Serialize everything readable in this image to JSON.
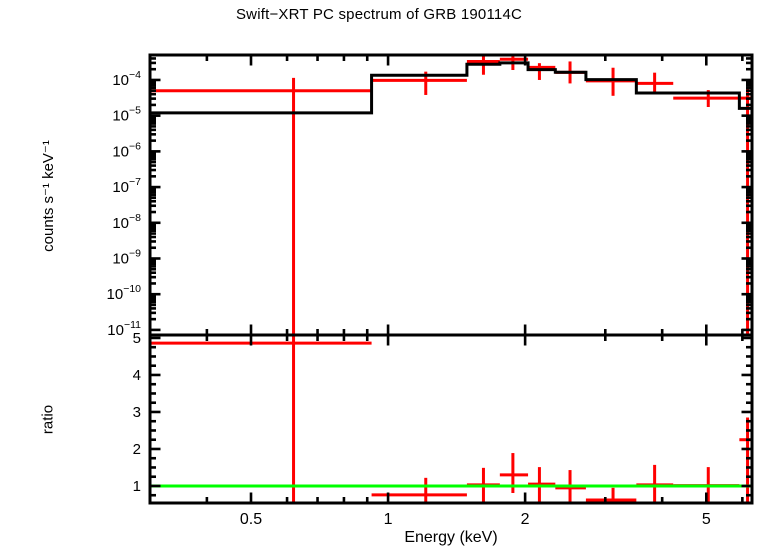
{
  "figure": {
    "title": "Swift−XRT PC spectrum of GRB 190114C",
    "xlabel": "Energy (keV)",
    "ylabel_top": "counts s⁻¹ keV⁻¹",
    "ylabel_bottom": "ratio",
    "background": "#ffffff",
    "text_color": "#000000",
    "colors": {
      "data": "#ff0000",
      "model": "#000000",
      "reference_line": "#00ff00",
      "frame": "#000000"
    }
  },
  "chart_data": [
    {
      "name": "spectrum-panel",
      "type": "scatter",
      "title": "Swift−XRT PC spectrum of GRB 190114C",
      "xlabel": "Energy (keV)",
      "ylabel": "counts s⁻¹ keV⁻¹",
      "xscale": "log",
      "yscale": "log",
      "xlim": [
        0.3,
        6.3
      ],
      "ylim": [
        7.2e-12,
        0.0005
      ],
      "x_major_ticks": [
        0.5,
        1,
        2,
        5
      ],
      "x_major_tick_labels": [
        "0.5",
        "1",
        "2",
        "5"
      ],
      "x_minor_ticks": [
        0.3,
        0.4,
        0.6,
        0.7,
        0.8,
        0.9,
        3,
        4,
        6
      ],
      "y_decade_exponents": [
        -4,
        -5,
        -6,
        -7,
        -8,
        -9,
        -10,
        -11
      ],
      "grid": false,
      "legend": "none",
      "bins": [
        [
          0.3,
          0.92
        ],
        [
          0.92,
          1.49
        ],
        [
          1.49,
          1.76
        ],
        [
          1.76,
          2.03
        ],
        [
          2.03,
          2.33
        ],
        [
          2.33,
          2.72
        ],
        [
          2.72,
          3.51
        ],
        [
          3.51,
          4.23
        ],
        [
          4.23,
          5.91
        ],
        [
          5.91,
          6.3
        ]
      ],
      "model_values": [
        1.2e-05,
        0.000135,
        0.000275,
        0.0003,
        0.000195,
        0.000165,
        0.000102,
        4.3e-05,
        4.3e-05,
        1.6e-05
      ],
      "points": [
        {
          "x": 0.62,
          "x_lo": 0.3,
          "x_hi": 0.92,
          "y": 5e-05,
          "y_hi": 0.000114,
          "y_lo": 0
        },
        {
          "x": 1.21,
          "x_lo": 0.92,
          "x_hi": 1.49,
          "y": 9.7e-05,
          "y_hi": 0.000171,
          "y_lo": 3.8e-05
        },
        {
          "x": 1.62,
          "x_lo": 1.49,
          "x_hi": 1.76,
          "y": 0.00033,
          "y_hi": 0.00055,
          "y_lo": 0.00014
        },
        {
          "x": 1.88,
          "x_lo": 1.76,
          "x_hi": 2.03,
          "y": 0.00038,
          "y_hi": 0.00058,
          "y_lo": 0.00019
        },
        {
          "x": 2.15,
          "x_lo": 2.03,
          "x_hi": 2.33,
          "y": 0.000225,
          "y_hi": 0.000295,
          "y_lo": 0.0001
        },
        {
          "x": 2.51,
          "x_lo": 2.33,
          "x_hi": 2.72,
          "y": 0.000163,
          "y_hi": 0.00033,
          "y_lo": 8e-05
        },
        {
          "x": 3.12,
          "x_lo": 2.72,
          "x_hi": 3.51,
          "y": 9.4e-05,
          "y_hi": 0.00022,
          "y_lo": 3.6e-05
        },
        {
          "x": 3.85,
          "x_lo": 3.51,
          "x_hi": 4.23,
          "y": 8e-05,
          "y_hi": 0.00016,
          "y_lo": 4.3e-05
        },
        {
          "x": 5.05,
          "x_lo": 4.23,
          "x_hi": 5.91,
          "y": 3.1e-05,
          "y_hi": 5.2e-05,
          "y_lo": 1.75e-05
        },
        {
          "x": 6.16,
          "x_lo": 5.91,
          "x_hi": 6.3,
          "y": 3.1e-05,
          "y_hi": 6e-05,
          "y_lo": 0
        }
      ]
    },
    {
      "name": "ratio-panel",
      "type": "scatter",
      "xlabel": "Energy (keV)",
      "ylabel": "ratio",
      "xscale": "log",
      "yscale": "linear",
      "xlim": [
        0.3,
        6.3
      ],
      "ylim": [
        0.54,
        5.08
      ],
      "y_major_ticks": [
        1,
        2,
        3,
        4,
        5
      ],
      "y_minor_tick_step": 0.25,
      "reference_line_y": 1.0,
      "grid": false,
      "legend": "none",
      "points": [
        {
          "x": 0.62,
          "x_lo": 0.3,
          "x_hi": 0.92,
          "y": 4.86,
          "y_hi": 99,
          "y_lo": 0
        },
        {
          "x": 1.21,
          "x_lo": 0.92,
          "x_hi": 1.49,
          "y": 0.76,
          "y_hi": 1.22,
          "y_lo": 0
        },
        {
          "x": 1.62,
          "x_lo": 1.49,
          "x_hi": 1.76,
          "y": 1.03,
          "y_hi": 1.49,
          "y_lo": 0
        },
        {
          "x": 1.88,
          "x_lo": 1.76,
          "x_hi": 2.03,
          "y": 1.3,
          "y_hi": 1.89,
          "y_lo": 0.81
        },
        {
          "x": 2.15,
          "x_lo": 2.03,
          "x_hi": 2.33,
          "y": 1.05,
          "y_hi": 1.51,
          "y_lo": 0
        },
        {
          "x": 2.51,
          "x_lo": 2.33,
          "x_hi": 2.72,
          "y": 0.95,
          "y_hi": 1.43,
          "y_lo": 0
        },
        {
          "x": 3.12,
          "x_lo": 2.72,
          "x_hi": 3.51,
          "y": 0.62,
          "y_hi": 0.95,
          "y_lo": 0
        },
        {
          "x": 3.85,
          "x_lo": 3.51,
          "x_hi": 4.23,
          "y": 1.03,
          "y_hi": 1.57,
          "y_lo": 0
        },
        {
          "x": 5.05,
          "x_lo": 4.23,
          "x_hi": 5.91,
          "y": 1.01,
          "y_hi": 1.51,
          "y_lo": 0
        },
        {
          "x": 6.16,
          "x_lo": 5.91,
          "x_hi": 6.3,
          "y": 2.25,
          "y_hi": 2.85,
          "y_lo": 0
        }
      ]
    }
  ]
}
